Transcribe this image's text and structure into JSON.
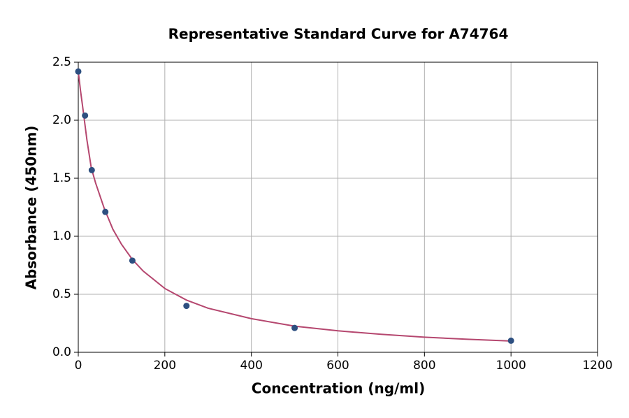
{
  "chart_data": {
    "type": "scatter",
    "title": "Representative Standard Curve for A74764",
    "x_label": "Concentration (ng/ml)",
    "y_label": "Absorbance (450nm)",
    "xlim": [
      0,
      1200
    ],
    "xticks": [
      0,
      200,
      400,
      600,
      800,
      1000,
      1200
    ],
    "ylim": [
      0,
      2.5
    ],
    "yticks": [
      {
        "value": 0,
        "label": "0.0"
      },
      0.5,
      {
        "value": 1,
        "label": "1.0"
      },
      1.5,
      {
        "value": 2,
        "label": "2.0"
      },
      2.5
    ],
    "grid": true,
    "series": [
      {
        "type": "line",
        "color": "#b5476f",
        "x": [
          0,
          5,
          10,
          20,
          30,
          40,
          50,
          60,
          80,
          100,
          125,
          150,
          200,
          250,
          300,
          400,
          500,
          600,
          700,
          800,
          900,
          1000
        ],
        "values": [
          2.42,
          2.26,
          2.12,
          1.83,
          1.59,
          1.46,
          1.35,
          1.24,
          1.06,
          0.93,
          0.8,
          0.7,
          0.55,
          0.45,
          0.38,
          0.29,
          0.225,
          0.185,
          0.155,
          0.13,
          0.112,
          0.097
        ]
      },
      {
        "type": "scatter",
        "color": "#2d4f80",
        "x": [
          0,
          15.625,
          31.25,
          62.5,
          125,
          250,
          500,
          1000
        ],
        "values": [
          2.42,
          2.04,
          1.57,
          1.21,
          0.79,
          0.4,
          0.21,
          0.1
        ]
      }
    ]
  }
}
